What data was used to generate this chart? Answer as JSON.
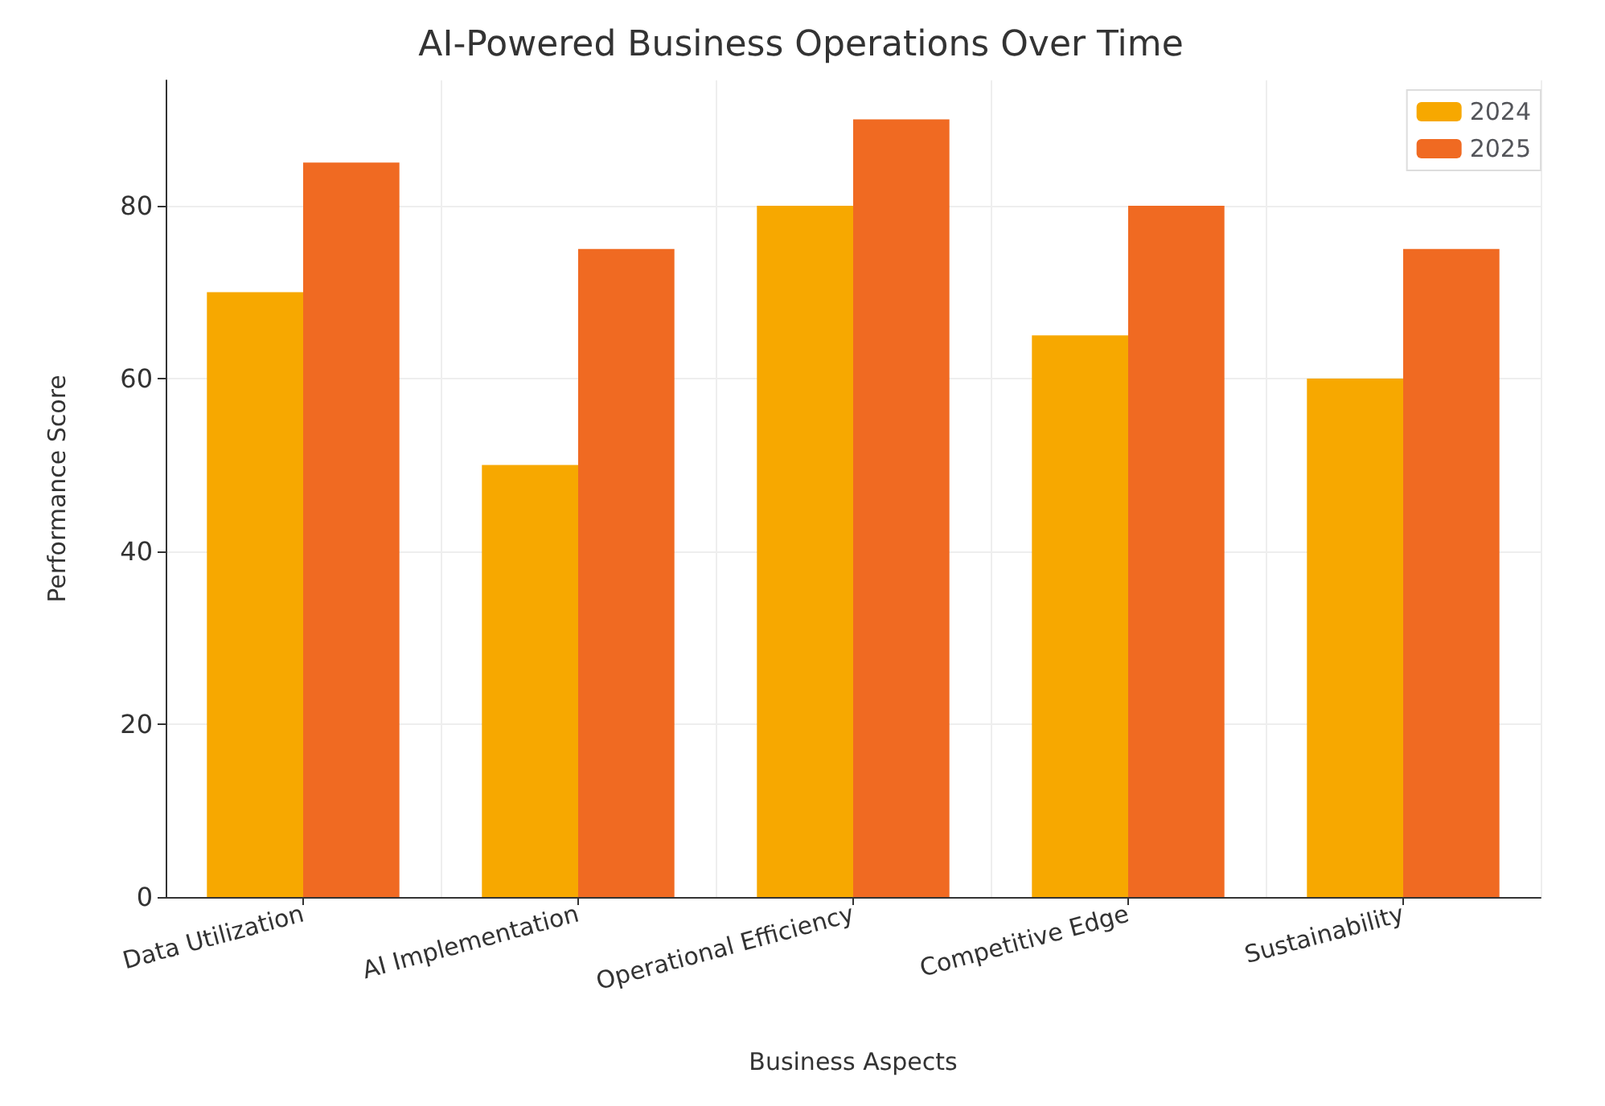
{
  "chart_data": {
    "type": "bar",
    "title": "AI-Powered Business Operations Over Time",
    "xlabel": "Business Aspects",
    "ylabel": "Performance Score",
    "categories": [
      "Data Utilization",
      "AI Implementation",
      "Operational Efficiency",
      "Competitive Edge",
      "Sustainability"
    ],
    "series": [
      {
        "name": "2024",
        "color": "#f7a800",
        "values": [
          70,
          50,
          80,
          65,
          60
        ]
      },
      {
        "name": "2025",
        "color": "#f06a22",
        "values": [
          85,
          75,
          90,
          80,
          75
        ]
      }
    ],
    "ylim": [
      0,
      94.5
    ],
    "yticks": [
      0,
      20,
      40,
      60,
      80
    ],
    "grid": true,
    "legend": "top right"
  }
}
